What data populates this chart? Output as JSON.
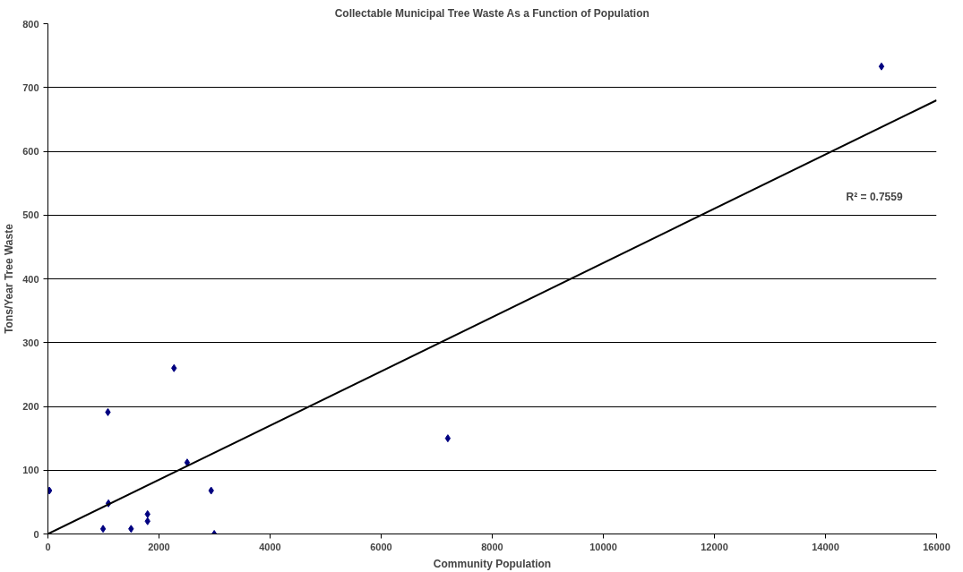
{
  "chart_data": {
    "type": "scatter",
    "title": "Collectable Municipal Tree Waste As a Function of Population",
    "xlabel": "Community Population",
    "ylabel": "Tons/Year Tree Waste",
    "series": [
      {
        "color": "#000080",
        "marker": "diamond",
        "x": [
          27,
          1080,
          2270,
          2507,
          1090,
          993,
          1497,
          1794,
          1794,
          2939,
          2994,
          7200,
          15008
        ],
        "values": [
          68,
          191,
          260,
          112,
          48,
          8,
          8,
          31,
          20,
          68,
          0,
          150,
          733
        ]
      },
      {
        "type": "line",
        "color": "#000000",
        "line_style": "solid",
        "x": [
          0,
          16000
        ],
        "values": [
          0,
          680
        ]
      }
    ],
    "annotations": [
      "R² = 0.7559"
    ],
    "xlim": [
      0,
      16000
    ],
    "xticks": [
      0,
      2000,
      4000,
      6000,
      8000,
      10000,
      12000,
      14000,
      16000
    ],
    "ylim": [
      0,
      800
    ],
    "yticks": [
      0,
      100,
      200,
      300,
      400,
      500,
      600,
      700,
      800
    ],
    "grid": "y"
  }
}
